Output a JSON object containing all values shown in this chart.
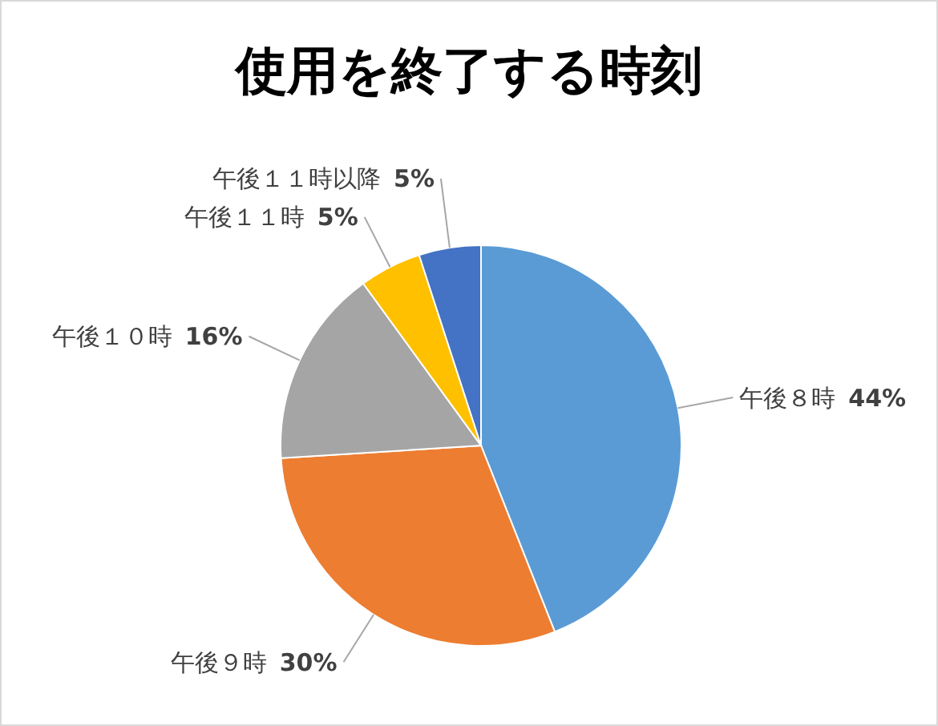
{
  "chart_data": {
    "type": "pie",
    "title": "使用を終了する時刻",
    "categories": [
      "午後８時",
      "午後９時",
      "午後１０時",
      "午後１１時",
      "午後１１時以降"
    ],
    "values": [
      44,
      30,
      16,
      5,
      5
    ],
    "value_labels": [
      "44%",
      "30%",
      "16%",
      "5%",
      "5%"
    ],
    "colors": [
      "#5b9bd5",
      "#ed7d31",
      "#a5a5a5",
      "#ffc000",
      "#4472c4"
    ],
    "legend": false
  }
}
